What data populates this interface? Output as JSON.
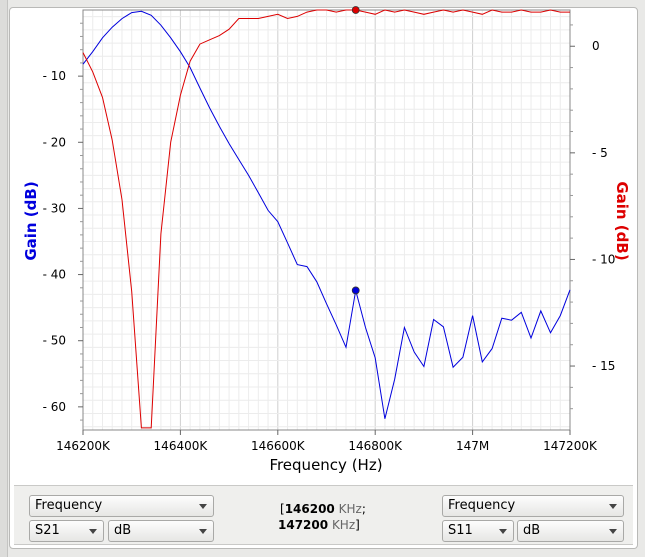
{
  "chart_data": {
    "type": "line",
    "xlabel": "Frequency (Hz)",
    "ylabel_left": "Gain (dB)",
    "ylabel_right": "Gain (dB)",
    "xlim": [
      146200000,
      147200000
    ],
    "ylim_left": [
      -63.5,
      0
    ],
    "ylim_right": [
      -18,
      1.7
    ],
    "x_ticks": [
      {
        "value": 146200000,
        "label": "146200K"
      },
      {
        "value": 146400000,
        "label": "146400K"
      },
      {
        "value": 146600000,
        "label": "146600K"
      },
      {
        "value": 146800000,
        "label": "146800K"
      },
      {
        "value": 147000000,
        "label": "147M"
      },
      {
        "value": 147200000,
        "label": "147200K"
      }
    ],
    "y_ticks_left": [
      -10,
      -20,
      -30,
      -40,
      -50,
      -60
    ],
    "y_ticks_right": [
      0,
      -5,
      -10,
      -15
    ],
    "grid": true,
    "colors": {
      "left": "#0000dd",
      "right": "#dd0000"
    },
    "series": [
      {
        "axis": "left",
        "x": [
          146200000,
          146220000,
          146240000,
          146260000,
          146280000,
          146300000,
          146320000,
          146340000,
          146360000,
          146380000,
          146400000,
          146420000,
          146440000,
          146460000,
          146480000,
          146500000,
          146520000,
          146540000,
          146560000,
          146580000,
          146600000,
          146620000,
          146640000,
          146660000,
          146680000,
          146700000,
          146720000,
          146740000,
          146760000,
          146780000,
          146800000,
          146820000,
          146840000,
          146860000,
          146880000,
          146900000,
          146920000,
          146940000,
          146960000,
          146980000,
          147000000,
          147020000,
          147040000,
          147060000,
          147080000,
          147100000,
          147120000,
          147140000,
          147160000,
          147180000,
          147200000
        ],
        "values": [
          -8.2,
          -6.3,
          -4.2,
          -2.6,
          -1.3,
          -0.4,
          -0.2,
          -0.8,
          -2.3,
          -4.2,
          -6.3,
          -8.7,
          -11.8,
          -14.8,
          -17.6,
          -20.2,
          -22.6,
          -25.0,
          -27.6,
          -30.3,
          -32.0,
          -35.2,
          -38.5,
          -38.8,
          -41.1,
          -44.4,
          -47.6,
          -51.0,
          -42.4,
          -48.0,
          -52.6,
          -61.8,
          -55.8,
          -48.0,
          -51.7,
          -53.9,
          -46.8,
          -47.9,
          -54.0,
          -52.5,
          -46.2,
          -53.2,
          -51.2,
          -46.6,
          -46.9,
          -45.7,
          -49.6,
          -45.5,
          -48.8,
          -46.2,
          -42.3
        ],
        "marker": {
          "x": 146760000,
          "y": -42.4
        }
      },
      {
        "axis": "right",
        "x": [
          146200000,
          146220000,
          146240000,
          146260000,
          146280000,
          146300000,
          146320000,
          146340000,
          146360000,
          146380000,
          146400000,
          146420000,
          146440000,
          146460000,
          146480000,
          146500000,
          146520000,
          146540000,
          146560000,
          146580000,
          146600000,
          146620000,
          146640000,
          146660000,
          146680000,
          146700000,
          146720000,
          146740000,
          146760000,
          146780000,
          146800000,
          146820000,
          146840000,
          146860000,
          146880000,
          146900000,
          146920000,
          146940000,
          146960000,
          146980000,
          147000000,
          147020000,
          147040000,
          147060000,
          147080000,
          147100000,
          147120000,
          147140000,
          147160000,
          147180000,
          147200000
        ],
        "values": [
          -0.3,
          -1.2,
          -2.4,
          -4.4,
          -7.2,
          -11.5,
          -17.9,
          -17.9,
          -8.8,
          -4.5,
          -2.3,
          -0.7,
          0.1,
          0.3,
          0.5,
          0.8,
          1.3,
          1.3,
          1.3,
          1.4,
          1.5,
          1.3,
          1.4,
          1.6,
          1.7,
          1.7,
          1.6,
          1.7,
          1.7,
          1.6,
          1.5,
          1.7,
          1.6,
          1.7,
          1.6,
          1.5,
          1.6,
          1.7,
          1.6,
          1.7,
          1.6,
          1.5,
          1.7,
          1.6,
          1.6,
          1.7,
          1.6,
          1.6,
          1.7,
          1.6,
          1.6
        ],
        "marker": {
          "x": 146760000,
          "y": 1.7
        }
      }
    ]
  },
  "controls": {
    "left": {
      "mode": "Frequency",
      "param": "S21",
      "format": "dB"
    },
    "center": {
      "range_start": "146200",
      "range_end": "147200",
      "unit": "KHz",
      "open_bracket": "[",
      "separator": ";",
      "close_bracket": "]"
    },
    "right": {
      "mode": "Frequency",
      "param": "S11",
      "format": "dB"
    }
  }
}
